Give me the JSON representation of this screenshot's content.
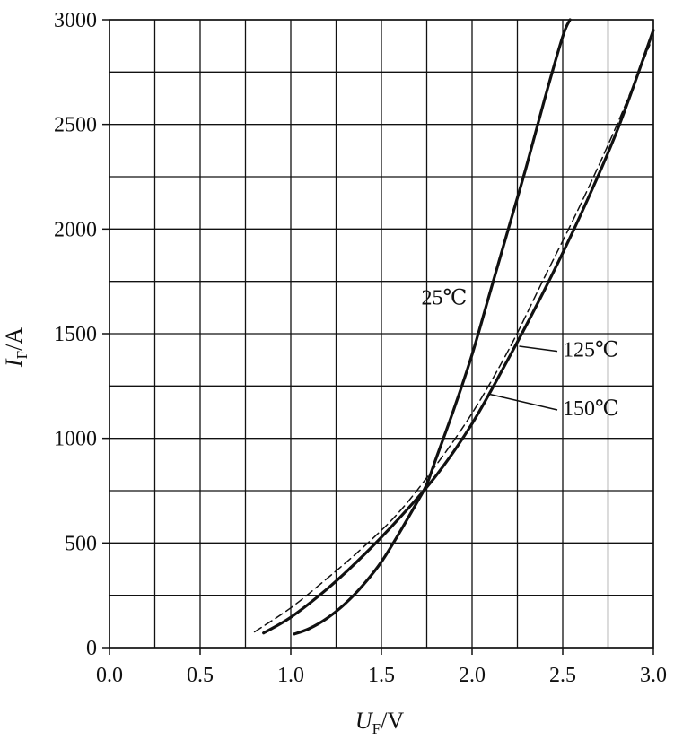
{
  "chart_data": {
    "type": "line",
    "title": "",
    "xlabel": "UF/V",
    "ylabel": "IF/A",
    "x_axis": {
      "label_main": "U",
      "label_sub": "F",
      "label_unit": "/V",
      "range": [
        0.0,
        3.0
      ],
      "ticks": [
        0.0,
        0.5,
        1.0,
        1.5,
        2.0,
        2.5,
        3.0
      ],
      "tick_labels": [
        "0.0",
        "0.5",
        "1.0",
        "1.5",
        "2.0",
        "2.5",
        "3.0"
      ],
      "minor_step": 0.25
    },
    "y_axis": {
      "label_main": "I",
      "label_sub": "F",
      "label_unit": "/A",
      "range": [
        0,
        3000
      ],
      "ticks": [
        0,
        500,
        1000,
        1500,
        2000,
        2500,
        3000
      ],
      "tick_labels": [
        "0",
        "500",
        "1000",
        "1500",
        "2000",
        "2500",
        "3000"
      ],
      "minor_step": 250
    },
    "grid": true,
    "series": [
      {
        "name": "25℃",
        "style": "solid",
        "color": "#111111",
        "x": [
          1.02,
          1.1,
          1.2,
          1.3,
          1.4,
          1.5,
          1.6,
          1.7,
          1.75,
          1.8,
          1.9,
          2.0,
          2.1,
          2.2,
          2.3,
          2.4,
          2.5,
          2.54
        ],
        "y": [
          65,
          90,
          140,
          210,
          300,
          410,
          550,
          700,
          780,
          900,
          1140,
          1400,
          1700,
          2000,
          2300,
          2620,
          2920,
          3000
        ]
      },
      {
        "name": "125℃",
        "style": "dashed",
        "color": "#111111",
        "x": [
          0.8,
          1.0,
          1.2,
          1.4,
          1.6,
          1.8,
          2.0,
          2.2,
          2.4,
          2.6,
          2.8,
          2.98
        ],
        "y": [
          75,
          190,
          330,
          480,
          650,
          870,
          1120,
          1420,
          1770,
          2120,
          2500,
          2880
        ]
      },
      {
        "name": "150℃",
        "style": "solid",
        "color": "#111111",
        "x": [
          0.85,
          1.0,
          1.2,
          1.4,
          1.6,
          1.8,
          2.0,
          2.2,
          2.4,
          2.6,
          2.8,
          3.0
        ],
        "y": [
          70,
          145,
          280,
          440,
          620,
          820,
          1070,
          1380,
          1710,
          2070,
          2470,
          2950
        ]
      }
    ],
    "annotations": [
      {
        "text": "25℃",
        "x": 1.72,
        "y": 1640,
        "leader": false
      },
      {
        "text": "125℃",
        "x": 2.5,
        "y": 1390,
        "leader": true,
        "target_x": 2.26,
        "target_y": 1440
      },
      {
        "text": "150℃",
        "x": 2.5,
        "y": 1110,
        "leader": true,
        "target_x": 2.1,
        "target_y": 1210
      }
    ]
  }
}
